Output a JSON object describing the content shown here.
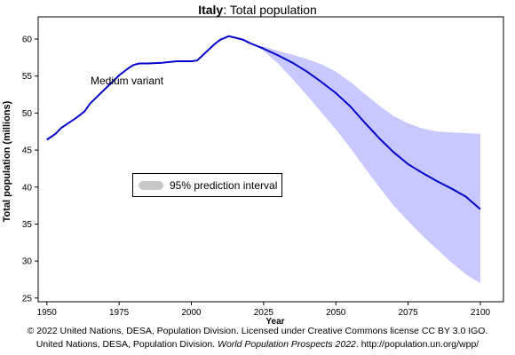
{
  "header": {
    "title_country": "Italy",
    "title_rest": ": Total population"
  },
  "chart_data": {
    "type": "line",
    "title": "Italy: Total population",
    "xlabel": "Year",
    "ylabel": "Total population (millions)",
    "xlim": [
      1947,
      2108
    ],
    "ylim": [
      24.5,
      63
    ],
    "x_ticks": [
      1950,
      1975,
      2000,
      2025,
      2050,
      2075,
      2100
    ],
    "y_ticks": [
      25,
      30,
      35,
      40,
      45,
      50,
      55,
      60
    ],
    "grid": false,
    "series": [
      {
        "name": "Medium variant",
        "color": "#0000cc",
        "points": [
          [
            1950,
            46.4
          ],
          [
            1953,
            47.2
          ],
          [
            1955,
            48.0
          ],
          [
            1960,
            49.3
          ],
          [
            1963,
            50.2
          ],
          [
            1965,
            51.3
          ],
          [
            1970,
            53.2
          ],
          [
            1975,
            55.1
          ],
          [
            1978,
            56.0
          ],
          [
            1980,
            56.5
          ],
          [
            1982,
            56.7
          ],
          [
            1985,
            56.7
          ],
          [
            1990,
            56.8
          ],
          [
            1995,
            57.0
          ],
          [
            2000,
            57.0
          ],
          [
            2002,
            57.1
          ],
          [
            2005,
            58.2
          ],
          [
            2008,
            59.3
          ],
          [
            2010,
            59.9
          ],
          [
            2013,
            60.4
          ],
          [
            2015,
            60.2
          ],
          [
            2018,
            59.9
          ],
          [
            2020,
            59.5
          ],
          [
            2025,
            58.7
          ],
          [
            2030,
            57.8
          ],
          [
            2035,
            56.8
          ],
          [
            2040,
            55.6
          ],
          [
            2045,
            54.2
          ],
          [
            2050,
            52.7
          ],
          [
            2055,
            50.9
          ],
          [
            2060,
            48.7
          ],
          [
            2065,
            46.6
          ],
          [
            2070,
            44.7
          ],
          [
            2075,
            43.1
          ],
          [
            2080,
            41.9
          ],
          [
            2085,
            40.8
          ],
          [
            2090,
            39.8
          ],
          [
            2095,
            38.7
          ],
          [
            2100,
            37.0
          ]
        ]
      }
    ],
    "interval": {
      "name": "95% prediction interval",
      "color": "#c8c8ff",
      "x": [
        2022,
        2025,
        2030,
        2035,
        2040,
        2045,
        2050,
        2055,
        2060,
        2065,
        2070,
        2075,
        2080,
        2085,
        2090,
        2095,
        2100
      ],
      "upper": [
        59.2,
        59.0,
        58.4,
        57.9,
        57.3,
        56.6,
        55.6,
        54.2,
        52.6,
        51.0,
        49.6,
        48.6,
        47.9,
        47.5,
        47.4,
        47.3,
        47.2
      ],
      "lower": [
        59.2,
        58.4,
        56.7,
        54.6,
        52.4,
        50.1,
        47.8,
        45.3,
        42.6,
        40.0,
        37.5,
        35.4,
        33.4,
        31.6,
        29.8,
        28.2,
        27.0
      ]
    },
    "legend": {
      "label": "95% prediction interval",
      "placement": "center-left"
    },
    "annotations": [
      {
        "text": "Medium variant"
      }
    ]
  },
  "footer": {
    "line1": "© 2022 United Nations, DESA, Population Division. Licensed under Creative Commons license CC BY 3.0 IGO.",
    "line2_pre": "United Nations, DESA, Population Division. ",
    "line2_italic": "World Population Prospects 2022",
    "line2_post": ". http://population.un.org/wpp/"
  }
}
